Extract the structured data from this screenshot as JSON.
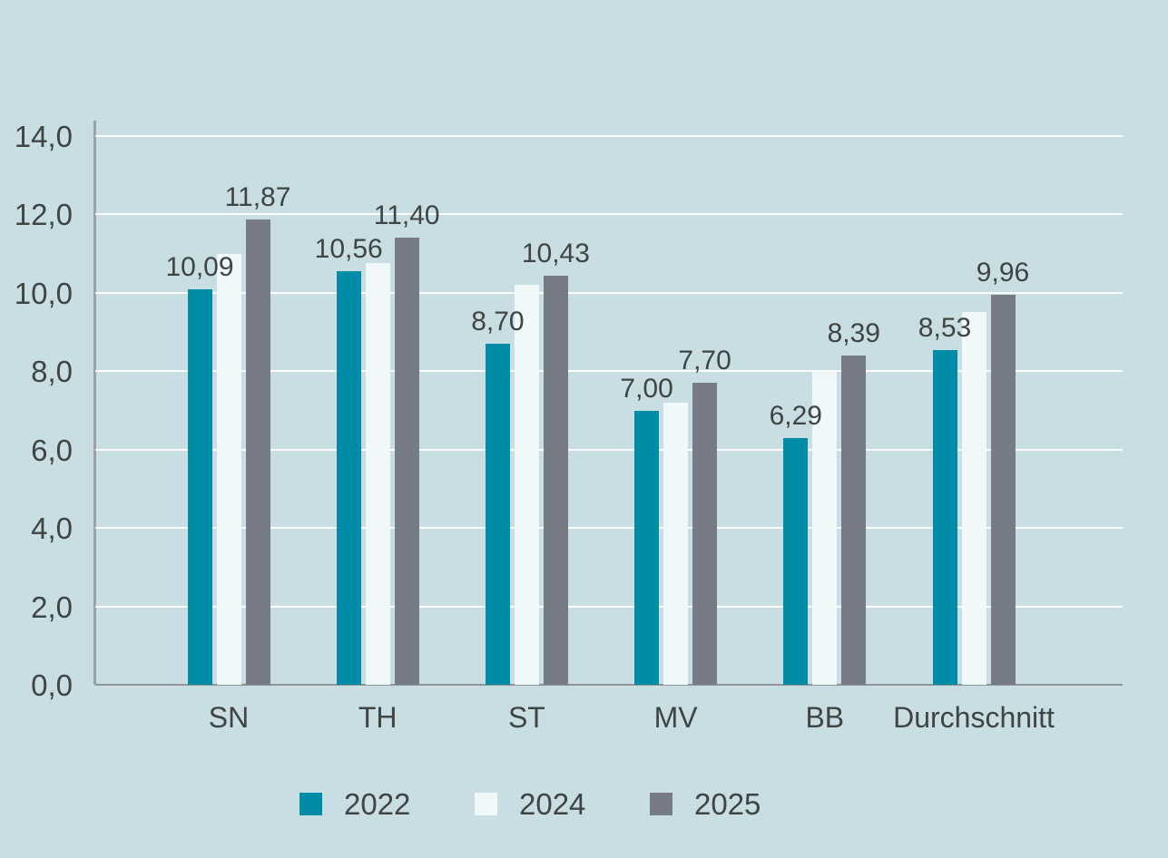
{
  "page": {
    "background_color": "#c9dee3",
    "text_color": "#3e4542",
    "axis_color": "#9aa1a5",
    "gridline_color": "#ffffff"
  },
  "chart_data": {
    "type": "bar",
    "title": "",
    "xlabel": "",
    "ylabel": "",
    "categories": [
      "SN",
      "TH",
      "ST",
      "MV",
      "BB",
      "Durchschnitt"
    ],
    "series": [
      {
        "name": "2022",
        "color": "#008ca6",
        "values": [
          10.09,
          10.56,
          8.7,
          7.0,
          6.29,
          8.53
        ],
        "value_labels": [
          "10,09",
          "10,56",
          "8,70",
          "7,00",
          "6,29",
          "8,53"
        ]
      },
      {
        "name": "2024",
        "color": "#f0f8fa",
        "values": [
          11.0,
          10.75,
          10.2,
          7.2,
          8.0,
          9.5
        ],
        "value_labels": [
          "",
          "",
          "",
          "",
          "",
          ""
        ]
      },
      {
        "name": "2025",
        "color": "#767b85",
        "values": [
          11.87,
          11.4,
          10.43,
          7.7,
          8.39,
          9.96
        ],
        "value_labels": [
          "11,87",
          "11,40",
          "10,43",
          "7,70",
          "8,39",
          "9,96"
        ]
      }
    ],
    "ylim": [
      0,
      14
    ],
    "ytick_step": 2,
    "ytick_labels": [
      "0,0",
      "2,0",
      "4,0",
      "6,0",
      "8,0",
      "10,0",
      "12,0",
      "14,0"
    ],
    "grid": true,
    "legend_position": "bottom",
    "notes": "2024 series bars carry no data labels; values estimated from gridlines"
  },
  "legend": {
    "items": [
      {
        "label": "2022",
        "color": "#008ca6"
      },
      {
        "label": "2024",
        "color": "#f0f8fa"
      },
      {
        "label": "2025",
        "color": "#767b85"
      }
    ]
  }
}
